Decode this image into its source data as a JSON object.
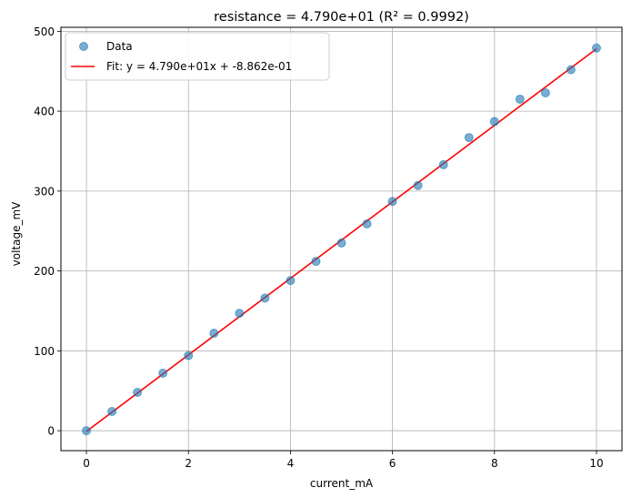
{
  "chart_data": {
    "type": "scatter",
    "title": "resistance = 4.790e+01 (R² = 0.9992)",
    "xlabel": "current_mA",
    "ylabel": "voltage_mV",
    "xlim": [
      -0.5,
      10.5
    ],
    "ylim": [
      -25,
      505
    ],
    "xticks": [
      0,
      2,
      4,
      6,
      8,
      10
    ],
    "yticks": [
      0,
      100,
      200,
      300,
      400,
      500
    ],
    "grid": true,
    "legend_position": "top-left",
    "series": [
      {
        "name": "Data",
        "kind": "scatter",
        "color": "#1f77b4",
        "x": [
          0,
          0.5,
          1,
          1.5,
          2,
          2.5,
          3,
          3.5,
          4,
          4.5,
          5,
          5.5,
          6,
          6.5,
          7,
          7.5,
          8,
          8.5,
          9,
          9.5,
          10
        ],
        "y": [
          0,
          24,
          48,
          72,
          94,
          122,
          147,
          166,
          188,
          212,
          235,
          259,
          287,
          307,
          333,
          367,
          387,
          415,
          423,
          452,
          479
        ]
      },
      {
        "name": "Fit: y = 4.790e+01x + -8.862e-01",
        "kind": "line",
        "color": "#ff0000",
        "slope": 47.9,
        "intercept": -0.8862,
        "x_range": [
          0,
          10
        ]
      }
    ]
  }
}
